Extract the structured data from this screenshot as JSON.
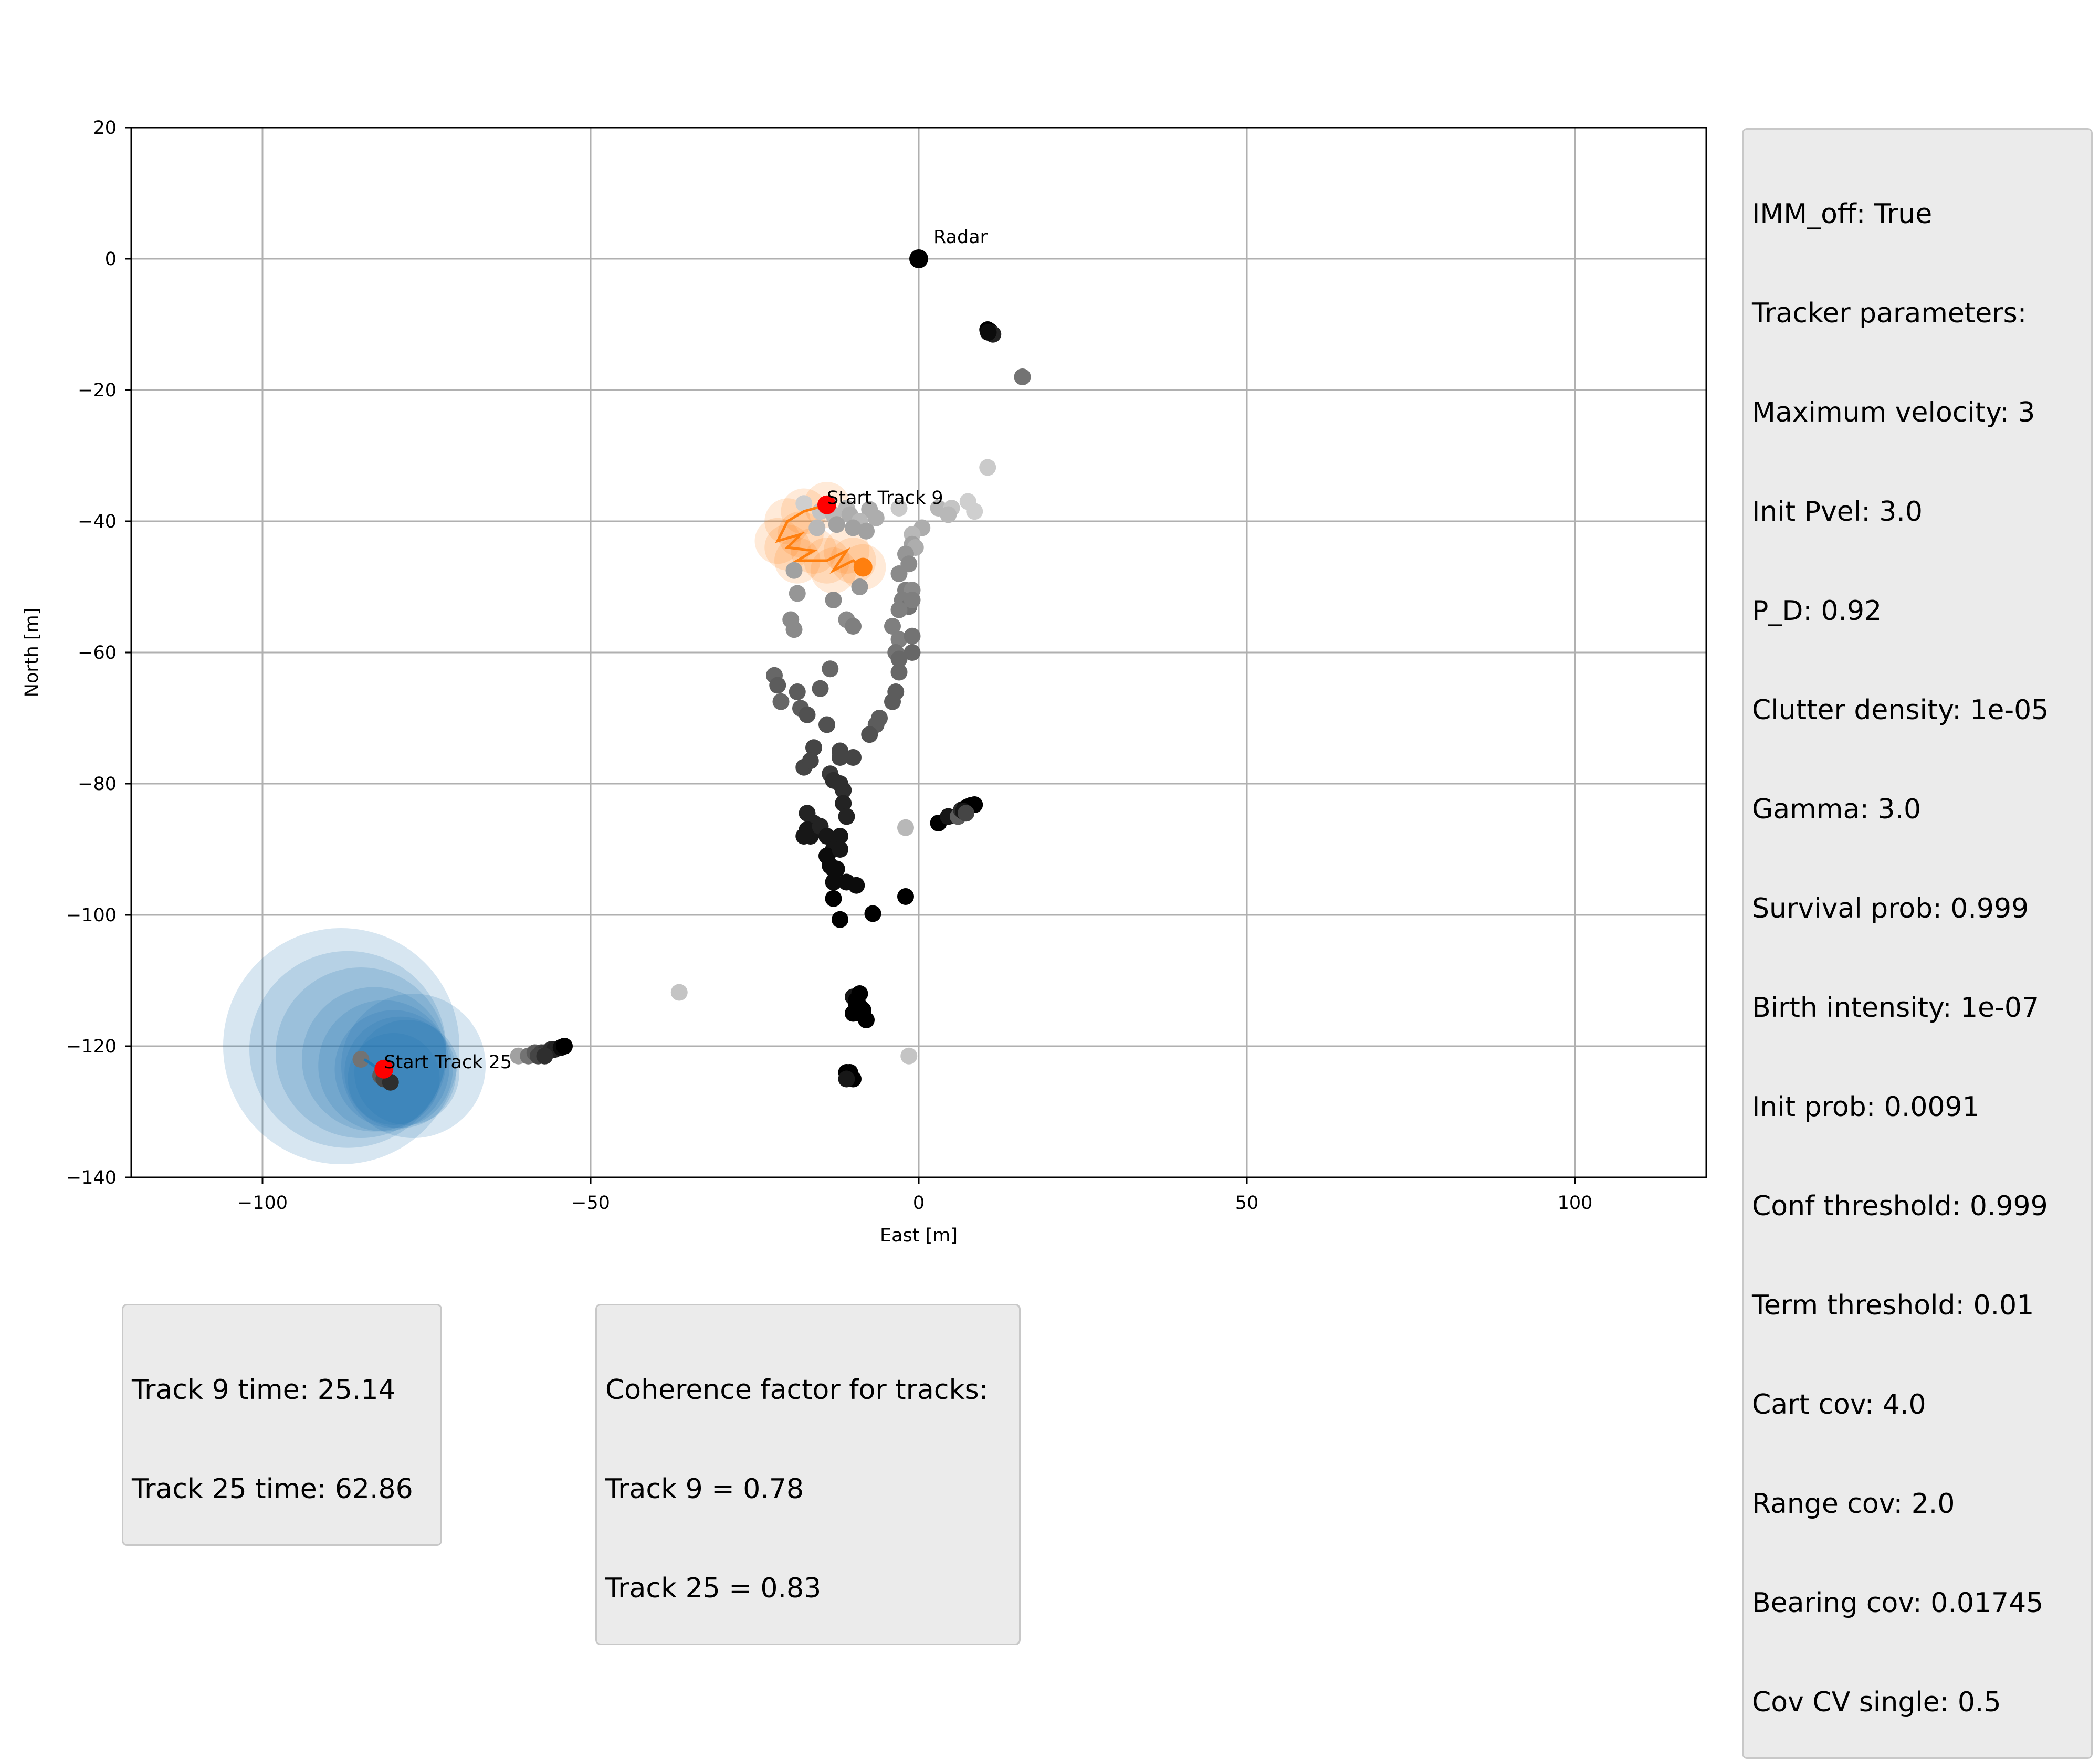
{
  "chart_data": {
    "type": "scatter",
    "xlabel": "East [m]",
    "ylabel": "North [m]",
    "xlim": [
      -120,
      120
    ],
    "ylim": [
      -140,
      20
    ],
    "xticks": [
      -100,
      -50,
      0,
      50,
      100
    ],
    "yticks": [
      20,
      0,
      -20,
      -40,
      -60,
      -80,
      -100,
      -120,
      -140
    ],
    "xtick_labels": [
      "−100",
      "−50",
      "0",
      "50",
      "100"
    ],
    "ytick_labels": [
      "20",
      "0",
      "−20",
      "−40",
      "−60",
      "−80",
      "−100",
      "−120",
      "−140"
    ],
    "grid": true,
    "radar": {
      "label": "Radar",
      "x": 0,
      "y": 0,
      "color": "#000000"
    },
    "track_starts": [
      {
        "label": "Start Track 9",
        "x": -14,
        "y": -37.5,
        "color": "#ff0000"
      },
      {
        "label": "Start Track 25",
        "x": -81.5,
        "y": -123.5,
        "color": "#ff0000"
      }
    ],
    "tracks": [
      {
        "id": 9,
        "color": "#ff7f0e",
        "points": [
          [
            -14,
            -37.5
          ],
          [
            -17.5,
            -38.5
          ],
          [
            -20,
            -40
          ],
          [
            -21.5,
            -43
          ],
          [
            -18,
            -42
          ],
          [
            -20,
            -44
          ],
          [
            -16,
            -44.5
          ],
          [
            -18.5,
            -46
          ],
          [
            -14,
            -46
          ],
          [
            -11,
            -44.5
          ],
          [
            -13,
            -47.5
          ],
          [
            -10,
            -46
          ],
          [
            -8.5,
            -47
          ]
        ],
        "cov_radius": 3.5
      },
      {
        "id": 25,
        "color": "#1f77b4",
        "points": [
          [
            -84.5,
            -122
          ],
          [
            -83,
            -123
          ],
          [
            -82,
            -124
          ],
          [
            -81.5,
            -123.5
          ],
          [
            -81,
            -124.5
          ]
        ],
        "cov_circles": [
          [
            -88,
            -120,
            18
          ],
          [
            -87,
            -120.5,
            15
          ],
          [
            -85,
            -121,
            13
          ],
          [
            -83,
            -122,
            11
          ],
          [
            -81.5,
            -123,
            10
          ],
          [
            -80,
            -123.5,
            9
          ],
          [
            -79,
            -124,
            8.5
          ],
          [
            -77,
            -123,
            11
          ],
          [
            -78,
            -124,
            8
          ],
          [
            -80,
            -125,
            7
          ]
        ]
      }
    ],
    "end_markers": [
      {
        "track": 9,
        "x": -8.5,
        "y": -47,
        "color": "#ff7f0e"
      }
    ],
    "measurement_color_scale": [
      "#e6e6e6",
      "#000000"
    ],
    "measurements": [
      [
        10.5,
        -10.8,
        1
      ],
      [
        10.8,
        -11,
        1
      ],
      [
        11,
        -11.3,
        0.9
      ],
      [
        11.3,
        -11.5,
        0.85
      ],
      [
        10.6,
        -11.2,
        0.95
      ],
      [
        15.8,
        -18,
        0.5
      ],
      [
        10.5,
        -31.8,
        0.12
      ],
      [
        -17.5,
        -37.3,
        0.1
      ],
      [
        -15,
        -38.5,
        0.15
      ],
      [
        -11,
        -38,
        0.2
      ],
      [
        -7.5,
        -38.2,
        0.25
      ],
      [
        -3,
        -38,
        0.12
      ],
      [
        3,
        -38,
        0.2
      ],
      [
        5,
        -38,
        0.15
      ],
      [
        7.5,
        -37,
        0.1
      ],
      [
        8.5,
        -38.5,
        0.1
      ],
      [
        -13,
        -39,
        0.2
      ],
      [
        -10.5,
        -39,
        0.25
      ],
      [
        -9,
        -40,
        0.2
      ],
      [
        -6.5,
        -39.5,
        0.25
      ],
      [
        4.5,
        -39,
        0.2
      ],
      [
        0.5,
        -41,
        0.25
      ],
      [
        -1,
        -42,
        0.2
      ],
      [
        -12.5,
        -40.5,
        0.3
      ],
      [
        -10,
        -41,
        0.3
      ],
      [
        -8,
        -41.5,
        0.3
      ],
      [
        -15.5,
        -41,
        0.2
      ],
      [
        -1,
        -43.5,
        0.3
      ],
      [
        -0.5,
        -44,
        0.25
      ],
      [
        -2,
        -45,
        0.35
      ],
      [
        -1.5,
        -46.5,
        0.4
      ],
      [
        -3,
        -48,
        0.4
      ],
      [
        -2,
        -50.5,
        0.45
      ],
      [
        -1,
        -50.5,
        0.4
      ],
      [
        -9,
        -50,
        0.35
      ],
      [
        -2.5,
        -52,
        0.45
      ],
      [
        -1.5,
        -53,
        0.5
      ],
      [
        -3,
        -53.5,
        0.45
      ],
      [
        -1,
        -52,
        0.45
      ],
      [
        -19,
        -47.5,
        0.3
      ],
      [
        -18.5,
        -51,
        0.35
      ],
      [
        -19.5,
        -55,
        0.4
      ],
      [
        -19,
        -56.5,
        0.4
      ],
      [
        -13,
        -52,
        0.4
      ],
      [
        -11,
        -55,
        0.4
      ],
      [
        -10,
        -56,
        0.45
      ],
      [
        -4,
        -56,
        0.45
      ],
      [
        -3,
        -58,
        0.45
      ],
      [
        -1,
        -57.5,
        0.5
      ],
      [
        -1,
        -60,
        0.55
      ],
      [
        -3.5,
        -60,
        0.5
      ],
      [
        -3,
        -61,
        0.55
      ],
      [
        -3,
        -63,
        0.55
      ],
      [
        -22,
        -63.5,
        0.55
      ],
      [
        -21.5,
        -65,
        0.6
      ],
      [
        -13.5,
        -62.5,
        0.55
      ],
      [
        -15,
        -65.5,
        0.6
      ],
      [
        -21,
        -67.5,
        0.55
      ],
      [
        -18.5,
        -66,
        0.6
      ],
      [
        -18,
        -68.5,
        0.6
      ],
      [
        -17,
        -69.5,
        0.65
      ],
      [
        -3.5,
        -66,
        0.6
      ],
      [
        -4,
        -67.5,
        0.6
      ],
      [
        -6,
        -70,
        0.6
      ],
      [
        -6.5,
        -71,
        0.6
      ],
      [
        -7.5,
        -72.5,
        0.65
      ],
      [
        -14,
        -71,
        0.65
      ],
      [
        -16,
        -74.5,
        0.7
      ],
      [
        -17.5,
        -77.5,
        0.7
      ],
      [
        -16.5,
        -76.5,
        0.7
      ],
      [
        -12,
        -75,
        0.7
      ],
      [
        -12,
        -76,
        0.7
      ],
      [
        -10,
        -76,
        0.7
      ],
      [
        -13.5,
        -78.5,
        0.75
      ],
      [
        -13,
        -79.5,
        0.8
      ],
      [
        -12,
        -80,
        0.8
      ],
      [
        -11.5,
        -81,
        0.8
      ],
      [
        -17,
        -84.5,
        0.85
      ],
      [
        -16,
        -86,
        0.85
      ],
      [
        -17,
        -87,
        0.9
      ],
      [
        -16.5,
        -88,
        0.9
      ],
      [
        -17.5,
        -88,
        0.9
      ],
      [
        -15,
        -86.5,
        0.85
      ],
      [
        -14,
        -88,
        0.9
      ],
      [
        -11.5,
        -83,
        0.85
      ],
      [
        -11,
        -85,
        0.85
      ],
      [
        -12,
        -88,
        0.9
      ],
      [
        -13,
        -90,
        0.9
      ],
      [
        -14,
        -91,
        0.95
      ],
      [
        -13.5,
        -92.5,
        0.95
      ],
      [
        -13,
        -93,
        0.95
      ],
      [
        -12,
        -90,
        0.9
      ],
      [
        -12.5,
        -93,
        0.95
      ],
      [
        -13,
        -95,
        0.95
      ],
      [
        -11,
        -95,
        0.95
      ],
      [
        -9.5,
        -95.5,
        0.95
      ],
      [
        -13,
        -97.5,
        1
      ],
      [
        -2,
        -97.2,
        1
      ],
      [
        -7,
        -99.8,
        1
      ],
      [
        -12,
        -100.7,
        1
      ],
      [
        3,
        -86,
        1
      ],
      [
        4.5,
        -85,
        0.9
      ],
      [
        6,
        -85,
        0.6
      ],
      [
        6.5,
        -84,
        0.8
      ],
      [
        7,
        -83.8,
        0.95
      ],
      [
        7.5,
        -83.5,
        1
      ],
      [
        8,
        -83.3,
        1
      ],
      [
        8.5,
        -83.2,
        1
      ],
      [
        6.8,
        -84.2,
        0.9
      ],
      [
        7.2,
        -84.5,
        0.7
      ],
      [
        -2,
        -86.7,
        0.2
      ],
      [
        -10,
        -112.5,
        0.9
      ],
      [
        -9.5,
        -113,
        1
      ],
      [
        -9,
        -112,
        1
      ],
      [
        -9,
        -114,
        1
      ],
      [
        -8.5,
        -114.5,
        1
      ],
      [
        -9,
        -115,
        1
      ],
      [
        -10,
        -115,
        1
      ],
      [
        -8,
        -116,
        1
      ],
      [
        -9.5,
        -113.5,
        1
      ],
      [
        -11,
        -124,
        1
      ],
      [
        -10.5,
        -124,
        1
      ],
      [
        -10,
        -125,
        1
      ],
      [
        -11,
        -125,
        0.9
      ],
      [
        -1.5,
        -121.5,
        0.15
      ],
      [
        -36.5,
        -111.8,
        0.15
      ],
      [
        -61,
        -121.5,
        0.3
      ],
      [
        -59.5,
        -121.5,
        0.5
      ],
      [
        -58.5,
        -121,
        0.6
      ],
      [
        -57.5,
        -121,
        0.7
      ],
      [
        -57,
        -121,
        0.75
      ],
      [
        -56,
        -120.5,
        0.8
      ],
      [
        -55.5,
        -120.5,
        0.85
      ],
      [
        -54.5,
        -120.2,
        0.95
      ],
      [
        -54,
        -120,
        1
      ],
      [
        -58,
        -121.5,
        0.7
      ],
      [
        -57,
        -121.5,
        0.8
      ],
      [
        -85,
        -122,
        0.5
      ],
      [
        -82,
        -124.5,
        0.6
      ],
      [
        -81.5,
        -125,
        0.7
      ],
      [
        -80.5,
        -125.5,
        0.8
      ]
    ]
  },
  "info_boxes": {
    "params": [
      "IMM_off: True",
      "Tracker parameters:",
      "Maximum velocity: 3",
      "Init Pvel: 3.0",
      "P_D: 0.92",
      "Clutter density: 1e-05",
      "Gamma: 3.0",
      "Survival prob: 0.999",
      "Birth intensity: 1e-07",
      "Init prob: 0.0091",
      "Conf threshold: 0.999",
      "Term threshold: 0.01",
      "Cart cov: 4.0",
      "Range cov: 2.0",
      "Bearing cov: 0.01745",
      "Cov CV single: 0.5"
    ],
    "times": [
      "Track 9 time: 25.14",
      "Track 25 time: 62.86"
    ],
    "coherence": [
      "Coherence factor for tracks:",
      "Track 9 = 0.78",
      "Track 25 = 0.83"
    ]
  },
  "colors": {
    "background": "#ffffff",
    "box_bg": "#ebebeb",
    "grid": "#b0b0b0"
  }
}
